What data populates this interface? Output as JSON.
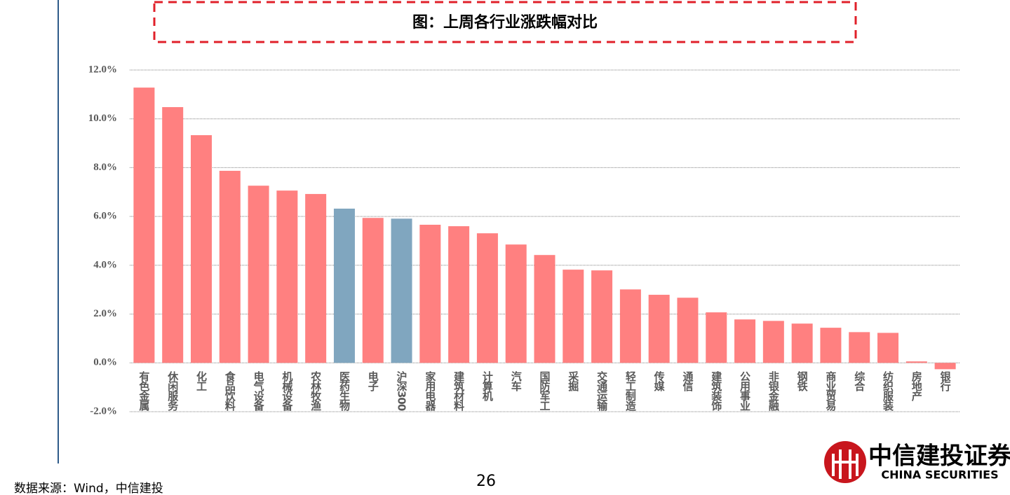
{
  "chart_data": {
    "type": "bar",
    "title": "图：上周各行业涨跌幅对比",
    "categories": [
      "有色金属",
      "休闲服务",
      "化工",
      "食品饮料",
      "电气设备",
      "机械设备",
      "农林牧渔",
      "医药生物",
      "电子",
      "沪深300",
      "家用电器",
      "建筑材料",
      "计算机",
      "汽车",
      "国防军工",
      "采掘",
      "交通运输",
      "轻工制造",
      "传媒",
      "通信",
      "建筑装饰",
      "公用事业",
      "非银金融",
      "钢铁",
      "商业贸易",
      "综合",
      "纺织服装",
      "房地产",
      "银行"
    ],
    "values": [
      11.28,
      10.48,
      9.33,
      7.87,
      7.26,
      7.06,
      6.92,
      6.32,
      5.94,
      5.91,
      5.66,
      5.6,
      5.31,
      4.85,
      4.42,
      3.82,
      3.79,
      3.01,
      2.79,
      2.67,
      2.07,
      1.78,
      1.72,
      1.61,
      1.44,
      1.26,
      1.23,
      0.06,
      -0.26
    ],
    "colors": [
      "#ff8080",
      "#ff8080",
      "#ff8080",
      "#ff8080",
      "#ff8080",
      "#ff8080",
      "#ff8080",
      "#80a6bf",
      "#ff8080",
      "#80a6bf",
      "#ff8080",
      "#ff8080",
      "#ff8080",
      "#ff8080",
      "#ff8080",
      "#ff8080",
      "#ff8080",
      "#ff8080",
      "#ff8080",
      "#ff8080",
      "#ff8080",
      "#ff8080",
      "#ff8080",
      "#ff8080",
      "#ff8080",
      "#ff8080",
      "#ff8080",
      "#ff8080",
      "#ff8080"
    ],
    "ylim": [
      -2,
      12
    ],
    "yticks": [
      {
        "value": -2,
        "label": "-2.0%"
      },
      {
        "value": 0,
        "label": "0.0%"
      },
      {
        "value": 2,
        "label": "2.0%"
      },
      {
        "value": 4,
        "label": "4.0%"
      },
      {
        "value": 6,
        "label": "6.0%"
      },
      {
        "value": 8,
        "label": "8.0%"
      },
      {
        "value": 10,
        "label": "10.0%"
      },
      {
        "value": 12,
        "label": "12.0%"
      }
    ],
    "grid": true
  },
  "footer": {
    "source": "数据来源：Wind，中信建投",
    "page_number": "26",
    "logo_name": "中信建投证券",
    "logo_english": "CHINA SECURITIES"
  }
}
